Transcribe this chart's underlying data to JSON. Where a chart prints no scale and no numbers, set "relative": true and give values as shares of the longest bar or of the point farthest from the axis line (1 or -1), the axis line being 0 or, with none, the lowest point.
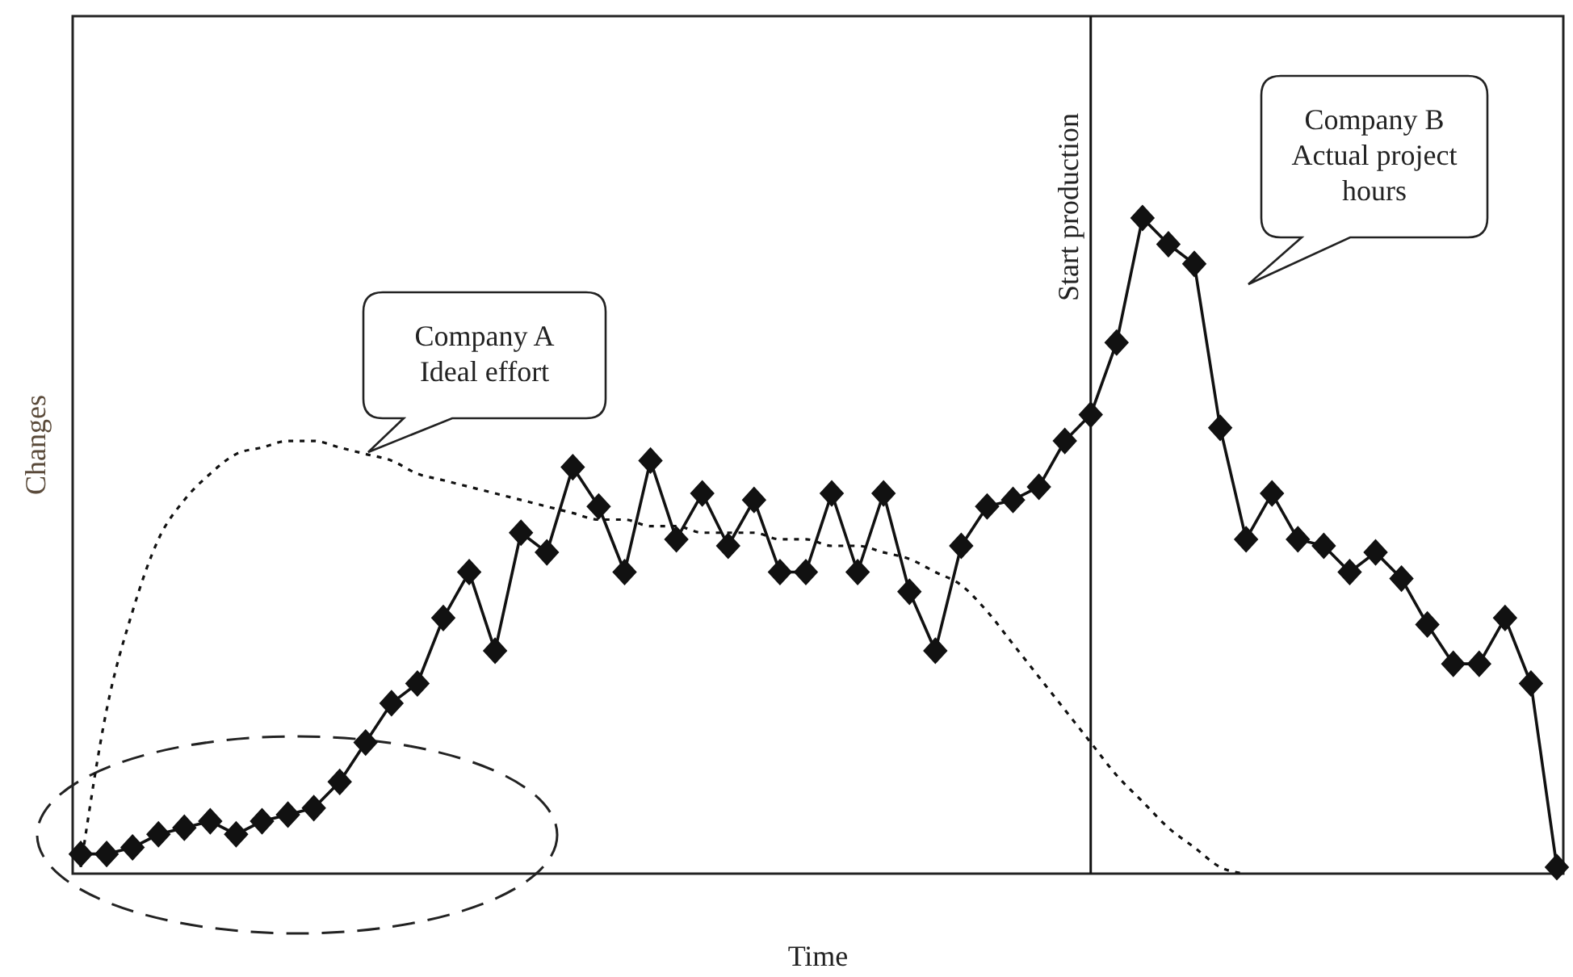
{
  "chart_data": {
    "type": "line",
    "relative": true,
    "xlabel": "Time",
    "ylabel": "Changes",
    "categories": [
      null,
      null,
      null,
      null,
      null,
      null,
      null,
      null,
      null,
      null,
      null,
      null,
      null,
      null,
      null,
      null,
      null,
      null,
      null,
      null,
      null,
      null,
      null,
      null,
      null,
      null,
      null,
      null,
      null,
      null,
      null,
      null,
      null,
      null,
      null,
      null,
      null,
      null,
      null,
      null,
      null,
      null,
      null,
      null,
      null,
      null,
      null,
      null,
      null,
      null,
      null,
      null,
      null,
      null,
      null,
      null,
      null,
      null
    ],
    "series": [
      {
        "color": "#111111",
        "marker": "none",
        "line_style": "dotted",
        "values": [
          0.01,
          0.25,
          0.4,
          0.51,
          0.57,
          0.61,
          0.64,
          0.65,
          0.66,
          0.66,
          0.65,
          0.64,
          0.63,
          0.61,
          0.6,
          0.59,
          0.58,
          0.57,
          0.56,
          0.55,
          0.54,
          0.54,
          0.53,
          0.53,
          0.52,
          0.52,
          0.52,
          0.51,
          0.51,
          0.5,
          0.5,
          0.49,
          0.48,
          0.46,
          0.44,
          0.4,
          0.35,
          0.3,
          0.25,
          0.2,
          0.15,
          0.11,
          0.07,
          0.04,
          0.01,
          0,
          null,
          null,
          null,
          null,
          null,
          null,
          null,
          null,
          null,
          null,
          null,
          null
        ]
      },
      {
        "color": "#111111",
        "marker": "diamond",
        "line_style": "solid",
        "values": [
          0.03,
          0.03,
          0.04,
          0.06,
          0.07,
          0.08,
          0.06,
          0.08,
          0.09,
          0.1,
          0.14,
          0.2,
          0.26,
          0.29,
          0.39,
          0.46,
          0.34,
          0.52,
          0.49,
          0.62,
          0.56,
          0.46,
          0.63,
          0.51,
          0.58,
          0.5,
          0.57,
          0.46,
          0.46,
          0.58,
          0.46,
          0.58,
          0.43,
          0.34,
          0.5,
          0.56,
          0.57,
          0.59,
          0.66,
          0.7,
          0.81,
          1,
          0.96,
          0.93,
          0.68,
          0.51,
          0.58,
          0.51,
          0.5,
          0.46,
          0.49,
          0.45,
          0.38,
          0.32,
          0.32,
          0.39,
          0.29,
          0.01
        ]
      }
    ],
    "annotations": [
      "Start production",
      "Company A\nIdeal effort",
      "Company B\nActual project\nhours"
    ]
  }
}
